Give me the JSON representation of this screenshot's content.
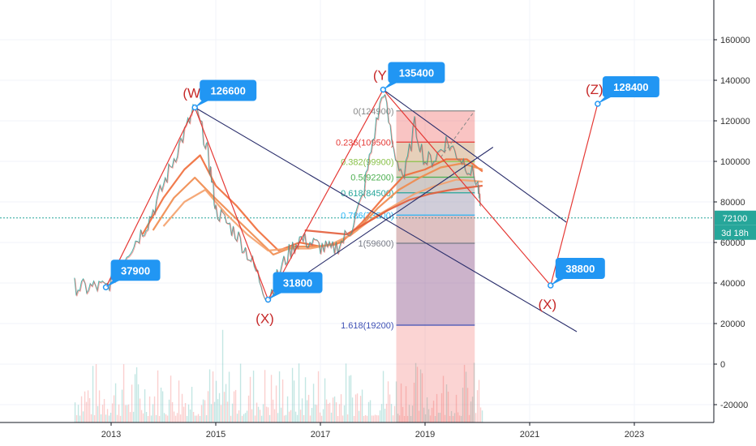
{
  "chart_data": {
    "type": "line",
    "x_axis": {
      "ticks": [
        {
          "year": 2013,
          "label": "2013"
        },
        {
          "year": 2015,
          "label": "2015"
        },
        {
          "year": 2017,
          "label": "2017"
        },
        {
          "year": 2019,
          "label": "2019"
        },
        {
          "year": 2021,
          "label": "2021"
        },
        {
          "year": 2023,
          "label": "2023"
        }
      ]
    },
    "y_axis": {
      "range": [
        -28000,
        170000
      ],
      "ticks": [
        {
          "value": 160000,
          "label": "160000"
        },
        {
          "value": 140000,
          "label": "140000"
        },
        {
          "value": 120000,
          "label": "120000"
        },
        {
          "value": 100000,
          "label": "100000"
        },
        {
          "value": 80000,
          "label": "80000"
        },
        {
          "value": 60000,
          "label": "60000"
        },
        {
          "value": 40000,
          "label": "40000"
        },
        {
          "value": 20000,
          "label": "20000"
        },
        {
          "value": 0,
          "label": "0"
        },
        {
          "value": -20000,
          "label": "-20000"
        }
      ]
    },
    "price_tag": {
      "value": 72100,
      "label": "72100",
      "timer": "3d 18h"
    },
    "pivots": [
      {
        "year": 2012.9,
        "value": 37900,
        "callout": "37900",
        "wave": ""
      },
      {
        "year": 2014.6,
        "value": 126600,
        "callout": "126600",
        "wave": "(W"
      },
      {
        "year": 2016.0,
        "value": 31800,
        "callout": "31800",
        "wave": "(X)"
      },
      {
        "year": 2018.2,
        "value": 135400,
        "callout": "135400",
        "wave": "(Y"
      },
      {
        "year": 2021.4,
        "value": 38800,
        "callout": "38800",
        "wave": "(X)"
      },
      {
        "year": 2022.3,
        "value": 128400,
        "callout": "128400",
        "wave": "(Z)"
      }
    ],
    "fib_levels": [
      {
        "value": 124900,
        "label": "0(124900)",
        "color": "#888888"
      },
      {
        "value": 109500,
        "label": "0.236(109500)",
        "color": "#e53935"
      },
      {
        "value": 99900,
        "label": "0.382(99900)",
        "color": "#8bc34a"
      },
      {
        "value": 92200,
        "label": "0.5(92200)",
        "color": "#4caf50"
      },
      {
        "value": 84500,
        "label": "0.618(84500)",
        "color": "#26a69a"
      },
      {
        "value": 73500,
        "label": "0.786(73500)",
        "color": "#29b6f6"
      },
      {
        "value": 59600,
        "label": "1(59600)",
        "color": "#787b86"
      },
      {
        "value": 19200,
        "label": "1.618(19200)",
        "color": "#3f51b5"
      }
    ],
    "fib_box": {
      "x0": 2018.45,
      "x1": 2019.95
    },
    "price_series": [
      [
        2012.3,
        38500
      ],
      [
        2012.5,
        37500
      ],
      [
        2012.7,
        38200
      ],
      [
        2012.9,
        37900
      ],
      [
        2013.1,
        45000
      ],
      [
        2013.3,
        55000
      ],
      [
        2013.5,
        62000
      ],
      [
        2013.7,
        70000
      ],
      [
        2013.9,
        82000
      ],
      [
        2014.1,
        95000
      ],
      [
        2014.3,
        108000
      ],
      [
        2014.5,
        120000
      ],
      [
        2014.6,
        126600
      ],
      [
        2014.8,
        110000
      ],
      [
        2014.9,
        95000
      ],
      [
        2015.0,
        76000
      ],
      [
        2015.2,
        70000
      ],
      [
        2015.4,
        64000
      ],
      [
        2015.6,
        55000
      ],
      [
        2015.8,
        44000
      ],
      [
        2016.0,
        31800
      ],
      [
        2016.2,
        45000
      ],
      [
        2016.4,
        55000
      ],
      [
        2016.6,
        62000
      ],
      [
        2016.8,
        60000
      ],
      [
        2017.0,
        58000
      ],
      [
        2017.2,
        56000
      ],
      [
        2017.4,
        60000
      ],
      [
        2017.6,
        68000
      ],
      [
        2017.8,
        82000
      ],
      [
        2018.0,
        110000
      ],
      [
        2018.2,
        135400
      ],
      [
        2018.4,
        105000
      ],
      [
        2018.6,
        92000
      ],
      [
        2018.8,
        118000
      ],
      [
        2019.0,
        100000
      ],
      [
        2019.2,
        102000
      ],
      [
        2019.4,
        110000
      ],
      [
        2019.6,
        104000
      ],
      [
        2019.8,
        98000
      ],
      [
        2020.0,
        90000
      ],
      [
        2020.05,
        78000
      ]
    ],
    "moving_averages": [
      [
        [
          2013.6,
          64000
        ],
        [
          2014.0,
          82000
        ],
        [
          2014.4,
          96000
        ],
        [
          2014.7,
          103000
        ],
        [
          2015.0,
          88000
        ],
        [
          2015.4,
          78000
        ],
        [
          2015.8,
          66000
        ],
        [
          2016.2,
          56000
        ],
        [
          2016.6,
          60000
        ],
        [
          2017.0,
          58000
        ],
        [
          2017.4,
          60000
        ],
        [
          2017.8,
          70000
        ],
        [
          2018.2,
          82000
        ],
        [
          2018.6,
          93000
        ],
        [
          2019.0,
          96000
        ],
        [
          2019.4,
          101000
        ],
        [
          2019.8,
          101000
        ],
        [
          2020.1,
          95000
        ]
      ],
      [
        [
          2013.8,
          66000
        ],
        [
          2014.2,
          82000
        ],
        [
          2014.6,
          92000
        ],
        [
          2014.9,
          84000
        ],
        [
          2015.3,
          74000
        ],
        [
          2015.7,
          64000
        ],
        [
          2016.1,
          54000
        ],
        [
          2016.5,
          58000
        ],
        [
          2016.9,
          58000
        ],
        [
          2017.3,
          59000
        ],
        [
          2017.7,
          66000
        ],
        [
          2018.1,
          77000
        ],
        [
          2018.5,
          86000
        ],
        [
          2018.9,
          92000
        ],
        [
          2019.3,
          97000
        ],
        [
          2019.7,
          99000
        ],
        [
          2020.1,
          96000
        ]
      ],
      [
        [
          2014.0,
          68000
        ],
        [
          2014.4,
          80000
        ],
        [
          2014.8,
          86000
        ],
        [
          2015.2,
          74000
        ],
        [
          2015.6,
          64000
        ],
        [
          2016.0,
          56000
        ],
        [
          2016.4,
          57000
        ],
        [
          2016.8,
          57000
        ],
        [
          2017.2,
          59000
        ],
        [
          2017.6,
          64000
        ],
        [
          2018.0,
          72000
        ],
        [
          2018.4,
          78000
        ],
        [
          2018.8,
          84000
        ],
        [
          2019.2,
          88000
        ],
        [
          2019.6,
          91000
        ],
        [
          2020.1,
          90000
        ]
      ],
      [
        [
          2016.7,
          66000
        ],
        [
          2017.1,
          65000
        ],
        [
          2017.5,
          64000
        ],
        [
          2017.9,
          70000
        ],
        [
          2018.3,
          76000
        ],
        [
          2018.7,
          81000
        ],
        [
          2019.1,
          84000
        ],
        [
          2019.5,
          86000
        ],
        [
          2020.1,
          88000
        ]
      ]
    ],
    "trendlines": [
      {
        "from": [
          2014.6,
          126600
        ],
        "to": [
          2021.9,
          16000
        ]
      },
      {
        "from": [
          2018.2,
          135400
        ],
        "to": [
          2021.7,
          70000
        ]
      },
      {
        "from": [
          2016.0,
          31800
        ],
        "to": [
          2020.3,
          107000
        ]
      }
    ],
    "projection_path": [
      [
        2018.2,
        135400
      ],
      [
        2021.4,
        38800
      ],
      [
        2022.3,
        128400
      ]
    ]
  }
}
